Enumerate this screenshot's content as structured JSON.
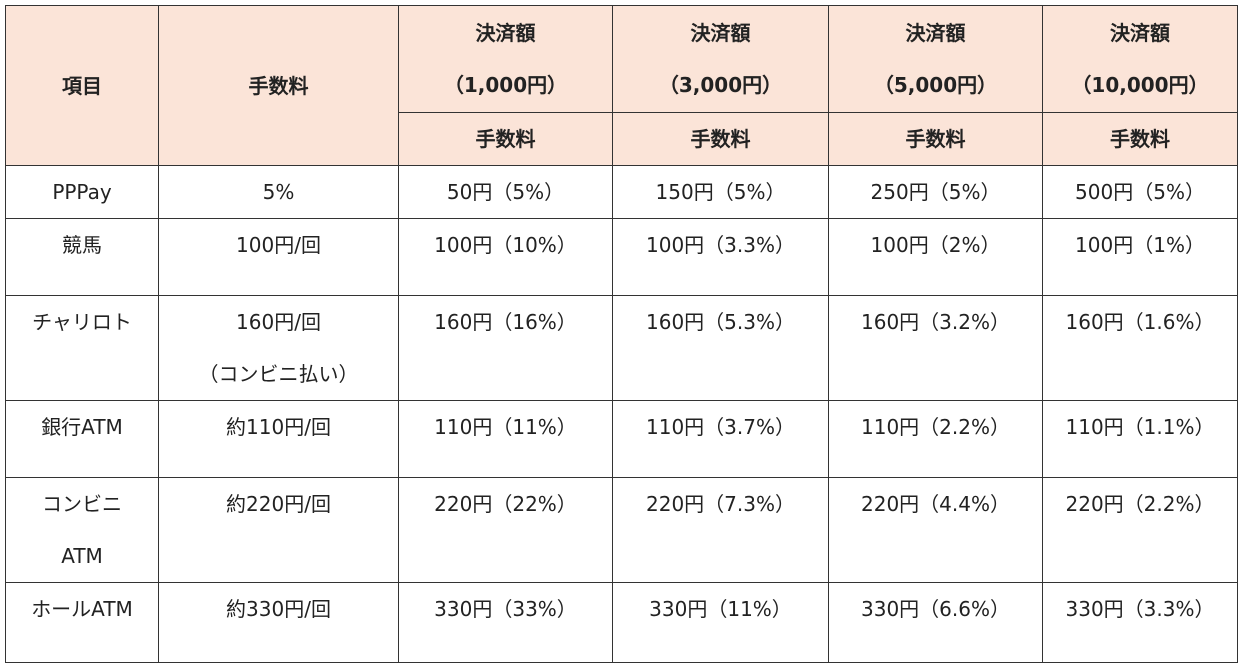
{
  "table": {
    "header": {
      "item": "項目",
      "fee": "手数料",
      "amounts": [
        [
          "決済額",
          "（1,000円）"
        ],
        [
          "決済額",
          "（3,000円）"
        ],
        [
          "決済額",
          "（5,000円）"
        ],
        [
          "決済額",
          "（10,000円）"
        ]
      ],
      "sub": [
        "手数料",
        "手数料",
        "手数料",
        "手数料"
      ]
    },
    "rows": [
      [
        [
          "PPPay"
        ],
        [
          "5%"
        ],
        [
          "50円（5%）"
        ],
        [
          "150円（5%）"
        ],
        [
          "250円（5%）"
        ],
        [
          "500円（5%）"
        ]
      ],
      [
        [
          "競馬"
        ],
        [
          "100円/回"
        ],
        [
          "100円（10%）"
        ],
        [
          "100円（3.3%）"
        ],
        [
          "100円（2%）"
        ],
        [
          "100円（1%）"
        ]
      ],
      [
        [
          "チャリロト"
        ],
        [
          "160円/回",
          "（コンビニ払い）"
        ],
        [
          "160円（16%）"
        ],
        [
          "160円（5.3%）"
        ],
        [
          "160円（3.2%）"
        ],
        [
          "160円（1.6%）"
        ]
      ],
      [
        [
          "銀行ATM"
        ],
        [
          "約110円/回"
        ],
        [
          "110円（11%）"
        ],
        [
          "110円（3.7%）"
        ],
        [
          "110円（2.2%）"
        ],
        [
          "110円（1.1%）"
        ]
      ],
      [
        [
          "コンビニ",
          "ATM"
        ],
        [
          "約220円/回"
        ],
        [
          "220円（22%）"
        ],
        [
          "220円（7.3%）"
        ],
        [
          "220円（4.4%）"
        ],
        [
          "220円（2.2%）"
        ]
      ],
      [
        [
          "ホールATM"
        ],
        [
          "約330円/回"
        ],
        [
          "330円（33%）"
        ],
        [
          "330円（11%）"
        ],
        [
          "330円（6.6%）"
        ],
        [
          "330円（3.3%）"
        ]
      ]
    ]
  }
}
